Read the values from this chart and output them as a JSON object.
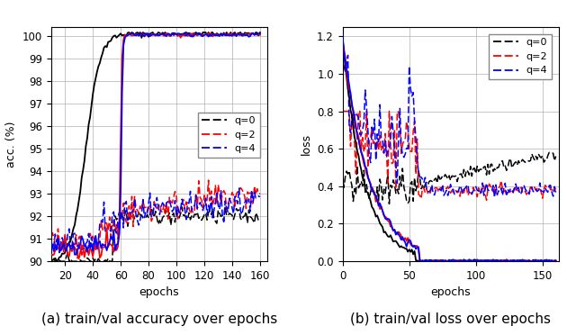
{
  "fig_width": 6.3,
  "fig_height": 3.72,
  "dpi": 100,
  "acc_xlim": [
    10,
    165
  ],
  "acc_ylim": [
    90,
    100.4
  ],
  "acc_xticks": [
    20,
    40,
    60,
    80,
    100,
    120,
    140,
    160
  ],
  "acc_yticks": [
    90,
    91,
    92,
    93,
    94,
    95,
    96,
    97,
    98,
    99,
    100
  ],
  "acc_xlabel": "epochs",
  "acc_ylabel": "acc. (%)",
  "acc_title": "(a) train/val accuracy over epochs",
  "loss_xlim": [
    0,
    162
  ],
  "loss_ylim": [
    0,
    1.25
  ],
  "loss_xticks": [
    0,
    50,
    100,
    150
  ],
  "loss_yticks": [
    0.0,
    0.2,
    0.4,
    0.6,
    0.8,
    1.0,
    1.2
  ],
  "loss_xlabel": "epochs",
  "loss_ylabel": "loss",
  "loss_title": "(b) train/val loss over epochs",
  "colors": {
    "q0": "#000000",
    "q2": "#ff0000",
    "q4": "#0000ff"
  },
  "legend_labels": [
    "q=0",
    "q=2",
    "q=4"
  ],
  "lw_solid": 1.3,
  "lw_dashed": 1.1,
  "title_fontsize": 11,
  "axis_fontsize": 9,
  "tick_fontsize": 8.5
}
